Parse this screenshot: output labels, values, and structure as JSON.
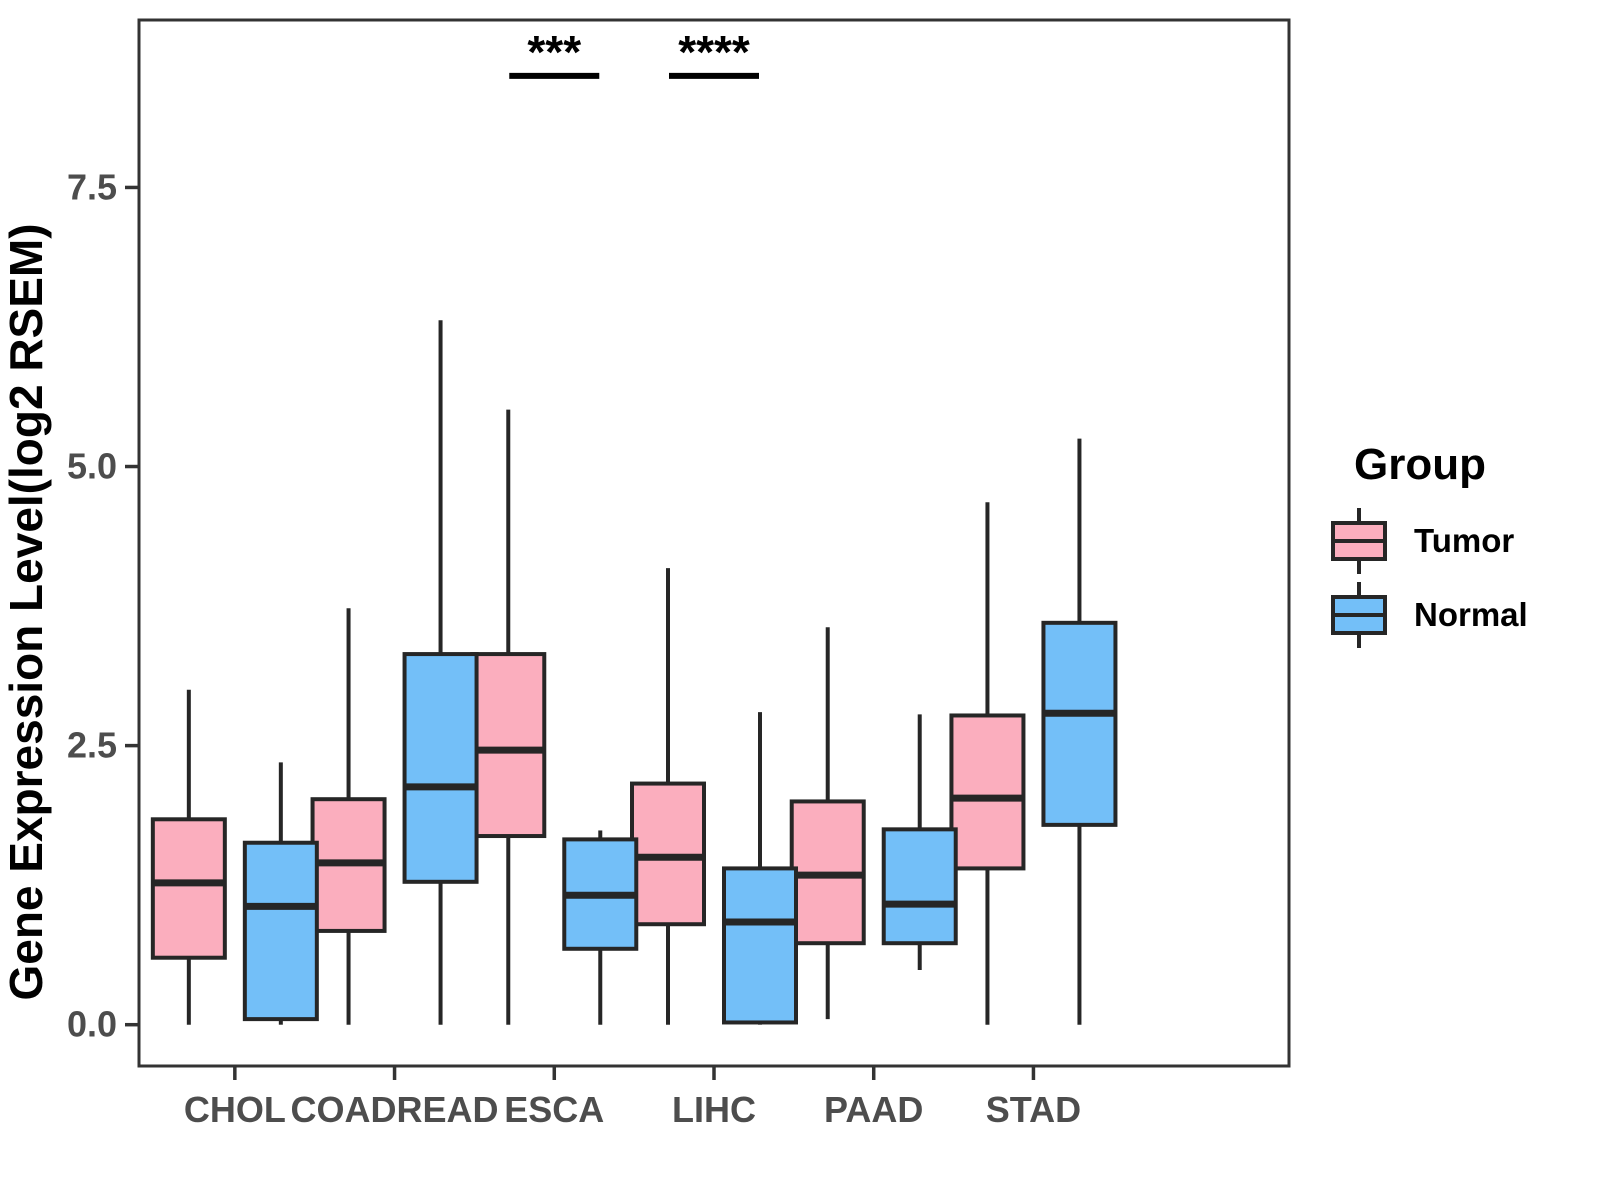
{
  "figure": {
    "background": "#ffffff"
  },
  "legend": {
    "title": "Group",
    "items": [
      {
        "label": "Tumor",
        "color": "#FBAEBE"
      },
      {
        "label": "Normal",
        "color": "#73BFF8"
      }
    ]
  },
  "colors": {
    "tumor_fill": "#FBAEBE",
    "normal_fill": "#73BFF8",
    "box_border": "#262626",
    "whisker": "#262626",
    "panel_border": "#333333",
    "axis_text": "#4d4d4d",
    "significance": "#000000"
  },
  "chart_data": {
    "type": "boxplot",
    "title": "",
    "xlabel": "",
    "ylabel": "Gene Expression Level(log2 RSEM)",
    "ylim": [
      -0.37,
      9.0
    ],
    "grid": false,
    "legend_position": "right",
    "y_ticks": [
      {
        "value": 0.0,
        "label": "0.0"
      },
      {
        "value": 2.5,
        "label": "2.5"
      },
      {
        "value": 5.0,
        "label": "5.0"
      },
      {
        "value": 7.5,
        "label": "7.5"
      }
    ],
    "categories": [
      "CHOL",
      "COADREAD",
      "ESCA",
      "LIHC",
      "PAAD",
      "STAD"
    ],
    "stat_keys": [
      "min",
      "q1",
      "median",
      "q3",
      "max"
    ],
    "series": [
      {
        "name": "Tumor",
        "fill": "#FBAEBE",
        "boxes": [
          [
            0.0,
            0.6,
            1.27,
            1.84,
            3.0
          ],
          [
            0.0,
            0.84,
            1.45,
            2.02,
            3.73
          ],
          [
            0.0,
            1.69,
            2.46,
            3.32,
            5.51
          ],
          [
            0.0,
            0.9,
            1.5,
            2.16,
            4.09
          ],
          [
            0.05,
            0.73,
            1.34,
            2.0,
            3.56
          ],
          [
            0.0,
            1.4,
            2.03,
            2.77,
            4.68
          ]
        ]
      },
      {
        "name": "Normal",
        "fill": "#73BFF8",
        "boxes": [
          [
            0.0,
            0.05,
            1.06,
            1.63,
            2.35
          ],
          [
            0.0,
            1.28,
            2.13,
            3.32,
            6.31
          ],
          [
            0.0,
            0.68,
            1.16,
            1.66,
            1.74
          ],
          [
            0.0,
            0.02,
            0.92,
            1.4,
            2.8
          ],
          [
            0.49,
            0.73,
            1.08,
            1.75,
            2.78
          ],
          [
            0.0,
            1.79,
            2.79,
            3.6,
            5.25
          ]
        ]
      }
    ],
    "significance": [
      {
        "category": "ESCA",
        "label": "***",
        "bar_y": 8.5
      },
      {
        "category": "LIHC",
        "label": "****",
        "bar_y": 8.5
      }
    ]
  }
}
